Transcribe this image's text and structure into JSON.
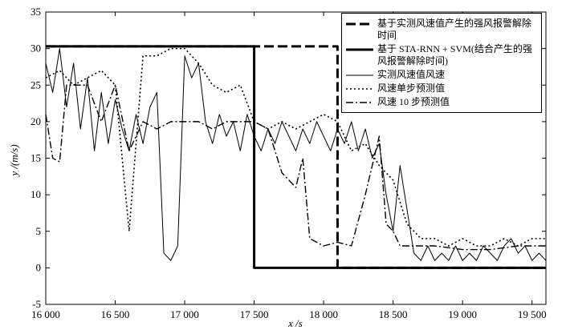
{
  "chart_data": {
    "type": "line",
    "xlabel": "x /s",
    "ylabel": "y /(m/s)",
    "xlim": [
      16000,
      19600
    ],
    "ylim": [
      -5,
      35
    ],
    "xticks": [
      {
        "value": 16000,
        "label": "16 000"
      },
      {
        "value": 16500,
        "label": "16 500"
      },
      {
        "value": 17000,
        "label": "17 000"
      },
      {
        "value": 17500,
        "label": "17 500"
      },
      {
        "value": 18000,
        "label": "18 000"
      },
      {
        "value": 18500,
        "label": "18 500"
      },
      {
        "value": 19000,
        "label": "19 000"
      },
      {
        "value": 19500,
        "label": "19 500"
      }
    ],
    "yticks": [
      -5,
      0,
      5,
      10,
      15,
      20,
      25,
      30,
      35
    ],
    "grid": false,
    "legend": "upper right",
    "series": [
      {
        "name": "基于实测风速值产生的强风报警解除时间",
        "color": "#000000",
        "style": "dash",
        "width": 3,
        "x": [
          16000,
          18100,
          18100,
          19600
        ],
        "values": [
          30.3,
          30.3,
          0,
          0
        ]
      },
      {
        "name": "基于 STA-RNN + SVM(结合产生的强风报警解除时间)",
        "color": "#000000",
        "style": "solid",
        "width": 3,
        "x": [
          16000,
          17500,
          17500,
          19600
        ],
        "values": [
          30.3,
          30.3,
          0,
          0
        ]
      },
      {
        "name": "实测风速值风速",
        "color": "#000000",
        "style": "solid",
        "width": 1,
        "x": [
          16000,
          16050,
          16100,
          16150,
          16200,
          16250,
          16300,
          16350,
          16400,
          16450,
          16500,
          16550,
          16600,
          16650,
          16700,
          16750,
          16800,
          16850,
          16900,
          16950,
          17000,
          17050,
          17100,
          17150,
          17200,
          17250,
          17300,
          17350,
          17400,
          17450,
          17500,
          17550,
          17600,
          17650,
          17700,
          17750,
          17800,
          17850,
          17900,
          17950,
          18000,
          18050,
          18100,
          18150,
          18200,
          18250,
          18300,
          18350,
          18400,
          18450,
          18500,
          18550,
          18600,
          18650,
          18700,
          18750,
          18800,
          18850,
          18900,
          18950,
          19000,
          19050,
          19100,
          19150,
          19200,
          19250,
          19300,
          19350,
          19400,
          19450,
          19500,
          19550,
          19600
        ],
        "values": [
          28,
          24,
          30,
          22,
          28,
          19,
          26,
          16,
          24,
          17,
          23,
          19,
          16,
          21,
          17,
          22,
          24,
          2,
          1,
          3,
          29,
          26,
          28,
          20,
          17,
          21,
          18,
          20,
          16,
          21,
          18,
          16,
          19,
          17,
          20,
          18,
          16,
          19,
          17,
          20,
          18,
          16,
          19,
          17,
          20,
          16,
          19,
          15,
          17,
          10,
          5,
          14,
          8,
          2,
          1,
          3,
          1,
          2,
          1,
          3,
          1,
          2,
          1,
          3,
          2,
          1,
          3,
          4,
          2,
          3,
          1,
          2,
          1
        ]
      },
      {
        "name": "风速单步预测值",
        "color": "#000000",
        "style": "dot",
        "width": 1.6,
        "x": [
          16000,
          16100,
          16200,
          16300,
          16400,
          16500,
          16600,
          16700,
          16800,
          16900,
          17000,
          17100,
          17200,
          17300,
          17400,
          17500,
          17600,
          17700,
          17800,
          17900,
          18000,
          18100,
          18200,
          18300,
          18400,
          18500,
          18600,
          18700,
          18800,
          18900,
          19000,
          19100,
          19200,
          19300,
          19400,
          19500,
          19600
        ],
        "values": [
          26,
          27,
          25,
          26,
          27,
          25,
          5,
          29,
          29,
          30,
          30,
          28,
          25,
          24,
          25,
          20,
          19,
          20,
          19,
          20,
          21,
          20,
          16,
          17,
          14,
          12,
          6,
          4,
          4,
          3,
          4,
          3,
          3,
          4,
          3,
          4,
          4
        ]
      },
      {
        "name": "风速 10 步预测值",
        "color": "#000000",
        "style": "dashdot",
        "width": 1.4,
        "x": [
          16000,
          16050,
          16100,
          16150,
          16300,
          16400,
          16500,
          16600,
          16700,
          16800,
          16900,
          17000,
          17100,
          17200,
          17300,
          17400,
          17500,
          17600,
          17700,
          17800,
          17850,
          17900,
          18000,
          18100,
          18200,
          18300,
          18400,
          18450,
          18500,
          18550,
          18700,
          18800,
          19000,
          19200,
          19400,
          19600
        ],
        "values": [
          21,
          15,
          14.5,
          25,
          25,
          20,
          25,
          16,
          20,
          19,
          20,
          20,
          20,
          19,
          20,
          20,
          20,
          19,
          13,
          11,
          15,
          4,
          3,
          3.5,
          3,
          10,
          18,
          6,
          5,
          3,
          3,
          3,
          2.5,
          2.5,
          3,
          3
        ]
      }
    ]
  }
}
